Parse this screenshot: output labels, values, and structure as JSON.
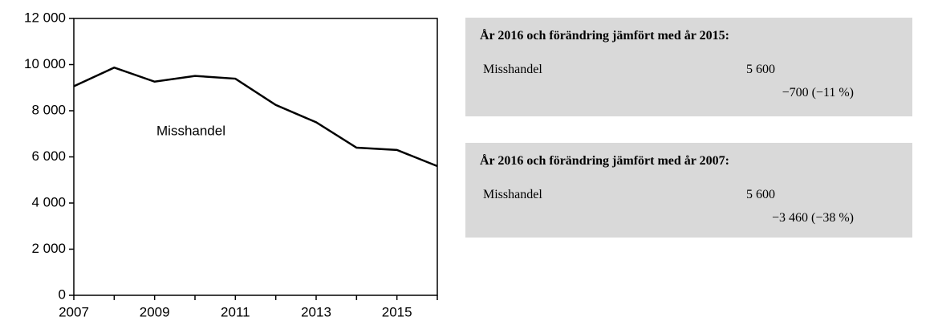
{
  "chart_data": {
    "type": "line",
    "x": [
      2007,
      2008,
      2009,
      2010,
      2011,
      2012,
      2013,
      2014,
      2015,
      2016
    ],
    "values": [
      9060,
      9870,
      9260,
      9510,
      9390,
      8250,
      7500,
      6400,
      6300,
      5600
    ],
    "color": "#000000",
    "annotation": "Misshandel",
    "xlim": [
      2007,
      2016
    ],
    "xticks": [
      2007,
      2009,
      2011,
      2013,
      2015
    ],
    "ylim": [
      0,
      12000
    ],
    "yticks": [
      0,
      {
        "value": 2000,
        "label": "2 000"
      },
      {
        "value": 4000,
        "label": "4 000"
      },
      {
        "value": 6000,
        "label": "6 000"
      },
      {
        "value": 8000,
        "label": "8 000"
      },
      {
        "value": 10000,
        "label": "10 000"
      },
      {
        "value": 12000,
        "label": "12 000"
      }
    ],
    "grid": false
  },
  "panels": [
    {
      "title": "År 2016 och förändring jämfört med år 2015:",
      "label": "Misshandel",
      "value": "5 600",
      "change": "−700 (−11 %)"
    },
    {
      "title": "År 2016 och förändring jämfört med år 2007:",
      "label": "Misshandel",
      "value": "5 600",
      "change": "−3 460 (−38 %)"
    }
  ]
}
